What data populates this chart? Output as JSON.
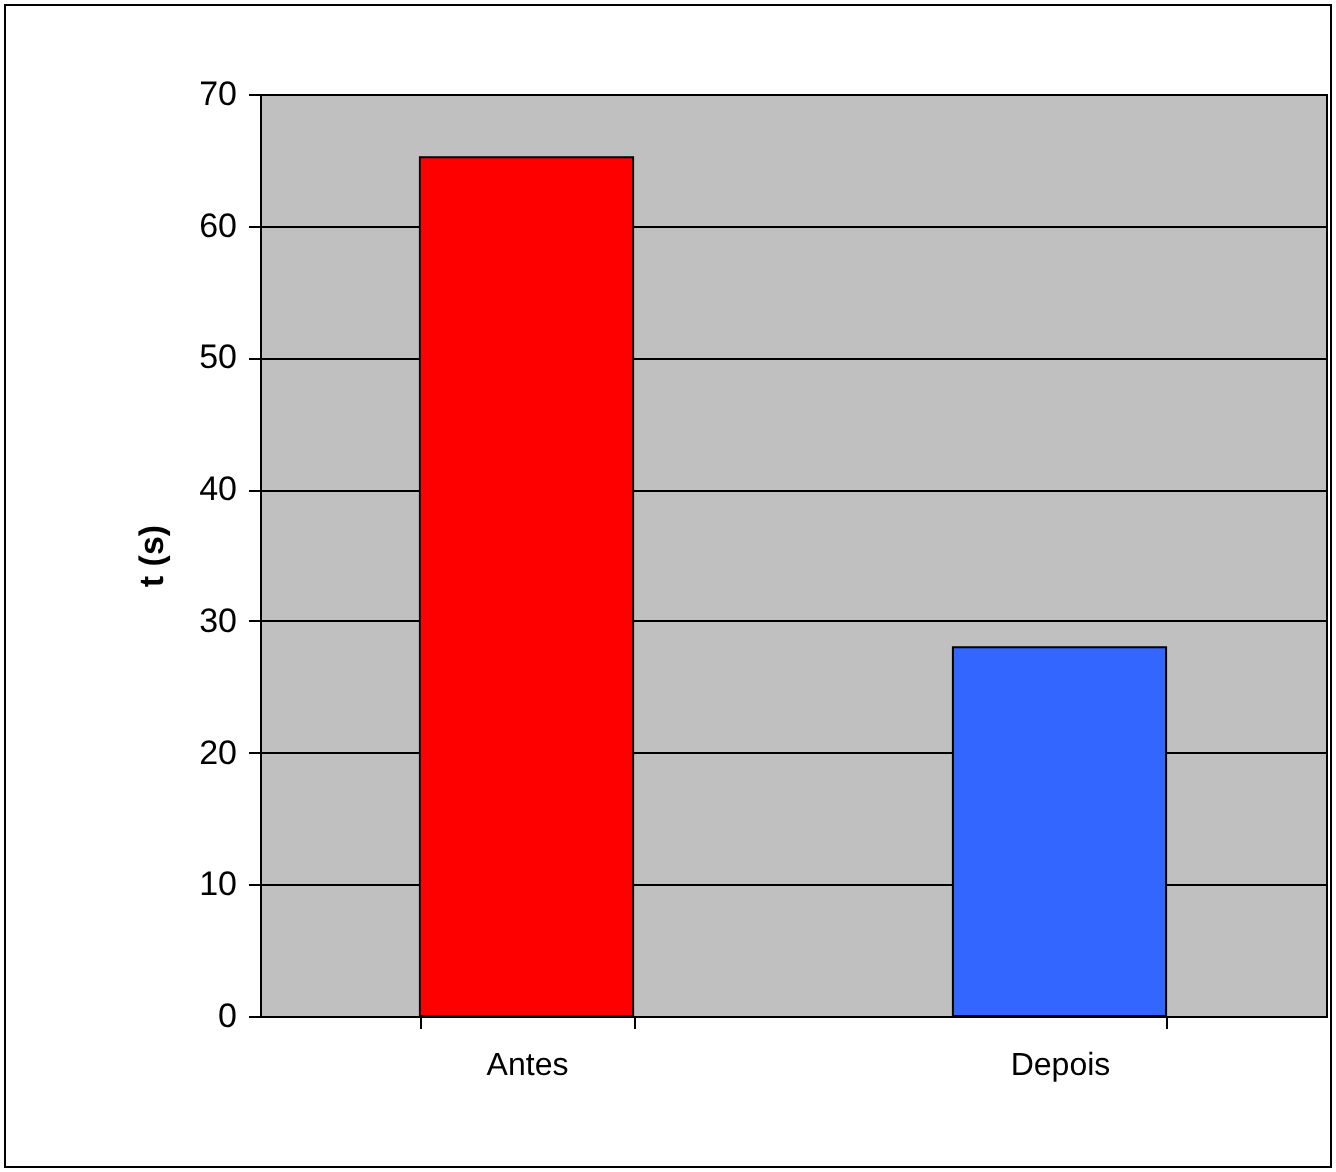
{
  "chart_data": {
    "type": "bar",
    "ylabel": "t (s)",
    "categories": [
      "Antes",
      "Depois"
    ],
    "values": [
      65.2,
      28
    ],
    "colors": [
      "#ff0000",
      "#3366ff"
    ],
    "ylim": [
      0,
      70
    ],
    "yticks": [
      0,
      10,
      20,
      30,
      40,
      50,
      60,
      70
    ],
    "grid": "y"
  }
}
